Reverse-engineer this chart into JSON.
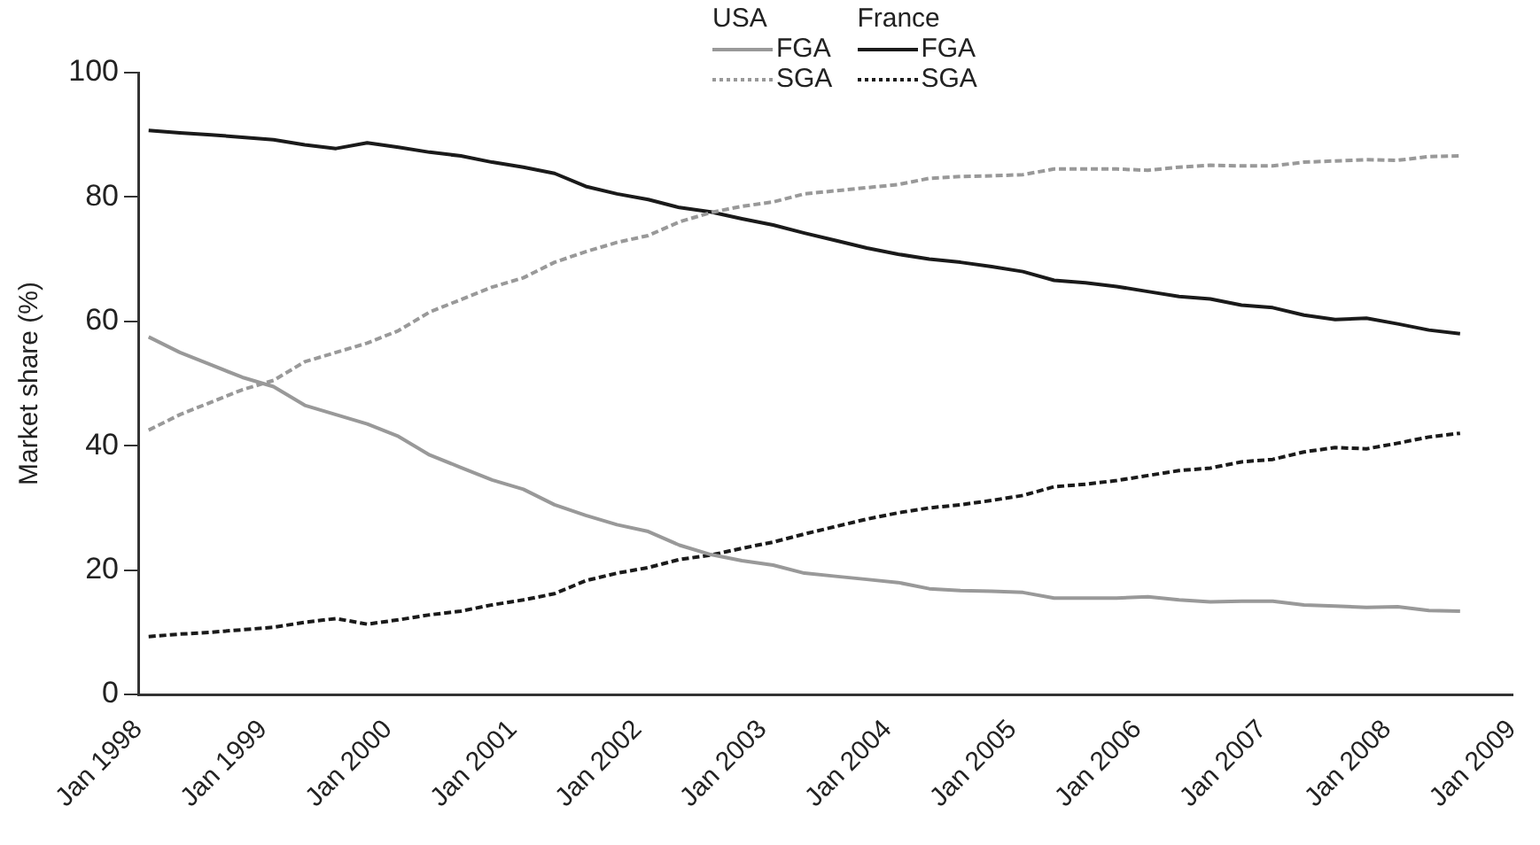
{
  "chart_data": {
    "type": "line",
    "ylabel": "Market share (%)",
    "annotations": [
      "USA",
      "France"
    ],
    "x": [
      "1998-02",
      "1998-05",
      "1998-08",
      "1998-11",
      "1999-02",
      "1999-05",
      "1999-08",
      "1999-11",
      "2000-02",
      "2000-05",
      "2000-08",
      "2000-11",
      "2001-02",
      "2001-05",
      "2001-08",
      "2001-11",
      "2002-02",
      "2002-05",
      "2002-08",
      "2002-11",
      "2003-02",
      "2003-05",
      "2003-08",
      "2003-11",
      "2004-02",
      "2004-05",
      "2004-08",
      "2004-11",
      "2005-02",
      "2005-05",
      "2005-08",
      "2005-11",
      "2006-02",
      "2006-05",
      "2006-08",
      "2006-11",
      "2007-02",
      "2007-05",
      "2007-08",
      "2007-11",
      "2008-02",
      "2008-05",
      "2008-08"
    ],
    "series": [
      {
        "name": "FGA",
        "color": "#999999",
        "line_style": "solid",
        "values": [
          57.5,
          55,
          53,
          51,
          49.5,
          46.5,
          45,
          43.5,
          41.5,
          38.5,
          36.5,
          34.5,
          33,
          30.5,
          28.8,
          27.3,
          26.2,
          24,
          22.5,
          21.5,
          20.8,
          19.5,
          19,
          18.5,
          18,
          17,
          16.7,
          16.6,
          16.4,
          15.5,
          15.5,
          15.5,
          15.7,
          15.2,
          14.9,
          15,
          15,
          14.4,
          14.2,
          14,
          14.1,
          13.5,
          13.4
        ]
      },
      {
        "name": "SGA",
        "color": "#999999",
        "line_style": "dashed",
        "values": [
          42.5,
          45,
          47,
          49,
          50.5,
          53.5,
          55,
          56.5,
          58.5,
          61.5,
          63.5,
          65.5,
          67,
          69.5,
          71.2,
          72.7,
          73.8,
          76,
          77.5,
          78.5,
          79.2,
          80.5,
          81,
          81.5,
          82,
          83,
          83.3,
          83.4,
          83.6,
          84.5,
          84.5,
          84.5,
          84.3,
          84.8,
          85.1,
          85,
          85,
          85.6,
          85.8,
          86,
          85.9,
          86.5,
          86.6
        ]
      },
      {
        "name": "FGA",
        "color": "#1a1a1a",
        "line_style": "solid",
        "values": [
          90.7,
          90.3,
          90,
          89.6,
          89.2,
          88.4,
          87.8,
          88.7,
          88,
          87.2,
          86.6,
          85.6,
          84.8,
          83.8,
          81.7,
          80.5,
          79.6,
          78.3,
          77.6,
          76.5,
          75.5,
          74.2,
          73,
          71.8,
          70.8,
          70,
          69.5,
          68.8,
          68,
          66.6,
          66.2,
          65.6,
          64.8,
          64,
          63.6,
          62.6,
          62.2,
          61,
          60.3,
          60.5,
          59.6,
          58.6,
          58
        ]
      },
      {
        "name": "SGA",
        "color": "#1a1a1a",
        "line_style": "dashed",
        "values": [
          9.3,
          9.7,
          10,
          10.4,
          10.8,
          11.6,
          12.2,
          11.3,
          12,
          12.8,
          13.4,
          14.4,
          15.2,
          16.2,
          18.3,
          19.5,
          20.4,
          21.7,
          22.4,
          23.5,
          24.5,
          25.8,
          27,
          28.2,
          29.2,
          30,
          30.5,
          31.2,
          32,
          33.4,
          33.8,
          34.4,
          35.2,
          36,
          36.4,
          37.4,
          37.8,
          39,
          39.7,
          39.5,
          40.4,
          41.4,
          42
        ]
      }
    ],
    "xlim": [
      "1998-01",
      "2009-01"
    ],
    "xticks": [
      {
        "value": "1998-01",
        "label": "Jan 1998"
      },
      {
        "value": "1999-01",
        "label": "Jan 1999"
      },
      {
        "value": "2000-01",
        "label": "Jan 2000"
      },
      {
        "value": "2001-01",
        "label": "Jan 2001"
      },
      {
        "value": "2002-01",
        "label": "Jan 2002"
      },
      {
        "value": "2003-01",
        "label": "Jan 2003"
      },
      {
        "value": "2004-01",
        "label": "Jan 2004"
      },
      {
        "value": "2005-01",
        "label": "Jan 2005"
      },
      {
        "value": "2006-01",
        "label": "Jan 2006"
      },
      {
        "value": "2007-01",
        "label": "Jan 2007"
      },
      {
        "value": "2008-01",
        "label": "Jan 2008"
      },
      {
        "value": "2009-01",
        "label": "Jan 2009"
      }
    ],
    "ylim": [
      0,
      100
    ],
    "yticks": [
      0,
      20,
      40,
      60,
      80,
      100
    ],
    "grid": false,
    "legend": "top",
    "marker": "none"
  }
}
